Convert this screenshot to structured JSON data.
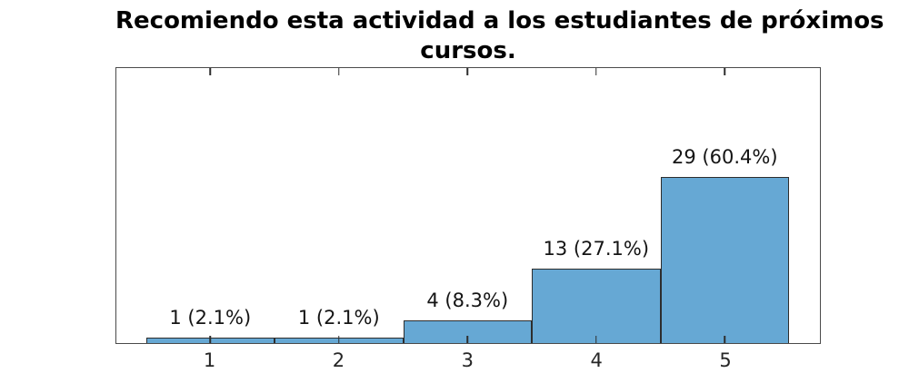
{
  "chart_data": {
    "type": "bar",
    "title": "Recomiendo esta actividad a los estudiantes de próximos cursos.",
    "title_lines": [
      "Recomiendo esta actividad a los estudiantes de próximos",
      "cursos."
    ],
    "categories": [
      "1",
      "2",
      "3",
      "4",
      "5"
    ],
    "values": [
      1,
      1,
      4,
      13,
      29
    ],
    "bar_labels": [
      "1 (2.1%)",
      "1 (2.1%)",
      "4 (8.3%)",
      "13 (27.1%)",
      "29 (60.4%)"
    ],
    "xlabel": "",
    "ylabel": "",
    "xlim": [
      0.27,
      5.74
    ],
    "ylim": [
      0,
      48
    ],
    "bar_width": 1,
    "grid": false,
    "legend": null,
    "ticks": "inward, top and bottom spines, full box frame, no y-axis ticks or labels",
    "colors": {
      "bar_fill": "#66a8d4",
      "bar_edge": "#2d2d2d",
      "axis_frame": "#4a4a4a",
      "title_text": "#000000",
      "label_text": "#141414",
      "tick_label_text": "#262626",
      "background": "#ffffff"
    }
  }
}
